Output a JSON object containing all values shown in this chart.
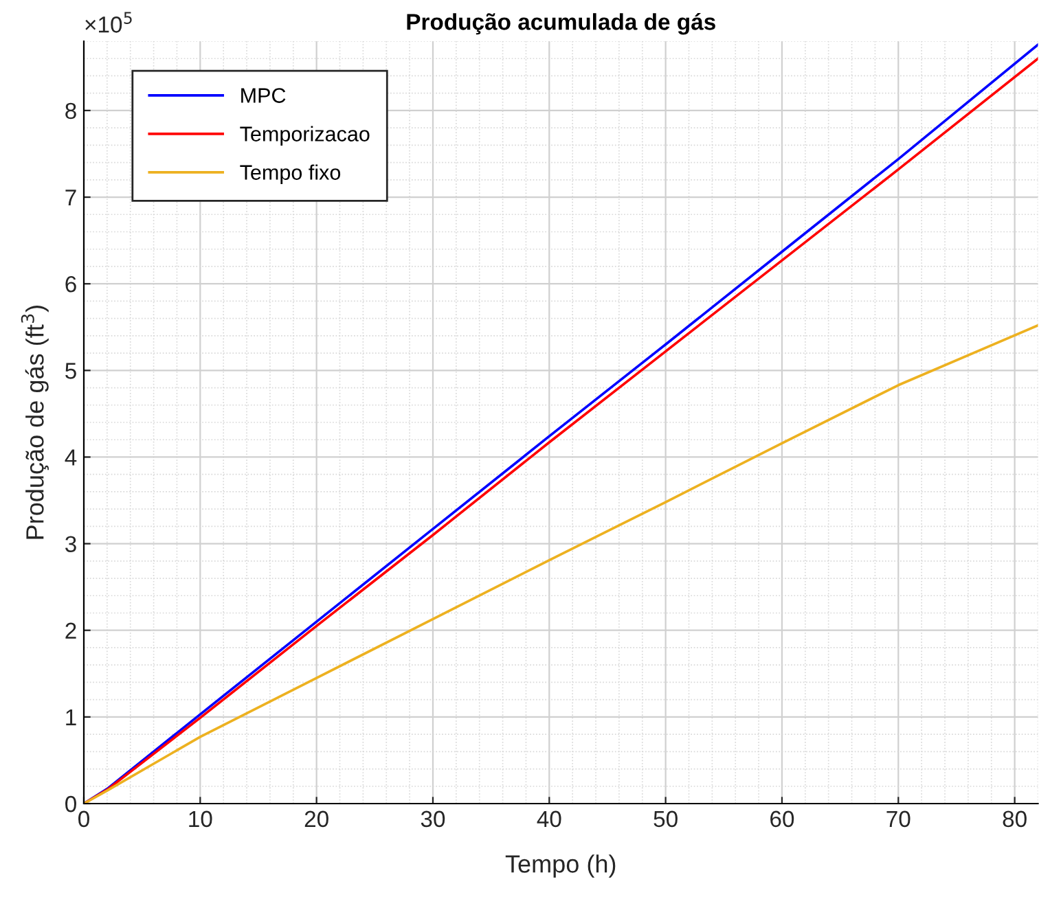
{
  "chart_data": {
    "type": "line",
    "title": "Produção acumulada de gás",
    "xlabel": "Tempo (h)",
    "ylabel": "Produção de gás (ft$^{3}$)",
    "annotations": [
      "×10$^{5}$"
    ],
    "x": [
      0,
      2,
      10,
      20,
      30,
      40,
      50,
      60,
      70,
      82
    ],
    "series": [
      {
        "name": "MPC",
        "color": "#0000ff",
        "values": [
          0,
          0.17,
          1.03,
          2.1,
          3.17,
          4.24,
          5.3,
          6.37,
          7.44,
          8.76
        ]
      },
      {
        "name": "Temporizacao",
        "color": "#ff0000",
        "values": [
          0,
          0.16,
          0.99,
          2.05,
          3.1,
          4.17,
          5.22,
          6.27,
          7.32,
          8.6
        ]
      },
      {
        "name": "Tempo fixo",
        "color": "#edb120",
        "values": [
          0,
          0.15,
          0.77,
          1.45,
          2.13,
          2.81,
          3.48,
          4.16,
          4.83,
          5.52
        ]
      }
    ],
    "xlim": [
      0,
      82
    ],
    "ylim": [
      0,
      8.8
    ],
    "xticks": [
      0,
      10,
      20,
      30,
      40,
      50,
      60,
      70,
      80
    ],
    "yticks": [
      0,
      1,
      2,
      3,
      4,
      5,
      6,
      7,
      8
    ],
    "grid": true,
    "legend": "top left",
    "line_style": "solid",
    "marker": "none"
  }
}
